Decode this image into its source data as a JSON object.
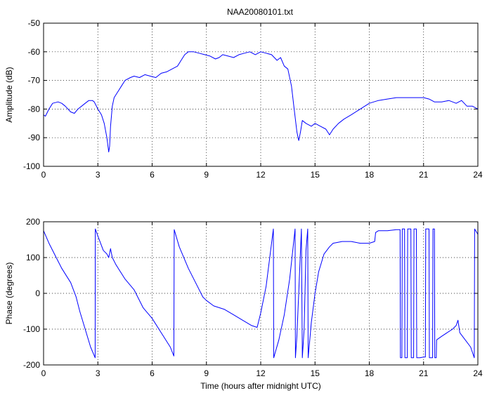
{
  "colors": {
    "series": "#0000ff",
    "axes": "#000000",
    "background": "#ffffff"
  },
  "chart_data": [
    {
      "type": "line",
      "title": "NAA20080101.txt",
      "xlabel": "",
      "ylabel": "Amplitude (dB)",
      "xlim": [
        0,
        24
      ],
      "ylim": [
        -100,
        -50
      ],
      "xticks": [
        0,
        3,
        6,
        9,
        12,
        15,
        18,
        21,
        24
      ],
      "yticks": [
        -100,
        -90,
        -80,
        -70,
        -60,
        -50
      ],
      "grid": true,
      "series": [
        {
          "name": "",
          "x": [
            0,
            0.1,
            0.3,
            0.5,
            0.8,
            1.0,
            1.2,
            1.5,
            1.7,
            1.9,
            2.1,
            2.3,
            2.5,
            2.7,
            2.8,
            3.0,
            3.2,
            3.35,
            3.5,
            3.6,
            3.65,
            3.7,
            3.8,
            3.9,
            4.1,
            4.3,
            4.5,
            4.8,
            5.0,
            5.3,
            5.6,
            5.9,
            6.2,
            6.5,
            6.8,
            7.1,
            7.4,
            7.6,
            7.8,
            8.0,
            8.3,
            8.6,
            8.9,
            9.2,
            9.5,
            9.7,
            9.9,
            10.2,
            10.5,
            10.8,
            11.1,
            11.4,
            11.7,
            12.0,
            12.3,
            12.6,
            12.9,
            13.1,
            13.3,
            13.5,
            13.7,
            13.85,
            14.0,
            14.1,
            14.2,
            14.3,
            14.5,
            14.8,
            15.0,
            15.3,
            15.6,
            15.8,
            16.0,
            16.3,
            16.6,
            17.0,
            17.5,
            18.0,
            18.5,
            19.0,
            19.5,
            20.0,
            20.5,
            21.0,
            21.3,
            21.6,
            22.0,
            22.4,
            22.8,
            23.1,
            23.4,
            23.7,
            24.0
          ],
          "y": [
            -82,
            -82.5,
            -80,
            -78,
            -77.5,
            -78,
            -79,
            -81,
            -81.5,
            -80,
            -79,
            -78,
            -77,
            -77,
            -77.5,
            -80,
            -82,
            -85,
            -90,
            -95,
            -93,
            -86,
            -79,
            -76,
            -74,
            -72,
            -70,
            -69,
            -68.5,
            -69,
            -68,
            -68.5,
            -69,
            -67.5,
            -67,
            -66,
            -65,
            -63,
            -61,
            -60,
            -60,
            -60.5,
            -61,
            -61.5,
            -62.5,
            -62,
            -61,
            -61.5,
            -62,
            -61,
            -60.5,
            -60,
            -61,
            -60,
            -60.5,
            -61,
            -63,
            -62,
            -65,
            -66,
            -72,
            -80,
            -88,
            -91,
            -88,
            -84,
            -85,
            -86,
            -85,
            -86,
            -87,
            -89,
            -87,
            -85,
            -83.5,
            -82,
            -80,
            -78,
            -77,
            -76.5,
            -76,
            -76,
            -76,
            -76,
            -76.5,
            -77.5,
            -77.5,
            -77,
            -78,
            -77,
            -79,
            -79,
            -80
          ]
        }
      ]
    },
    {
      "type": "line",
      "title": "",
      "xlabel": "Time (hours after midnight UTC)",
      "ylabel": "Phase (degrees)",
      "xlim": [
        0,
        24
      ],
      "ylim": [
        -200,
        200
      ],
      "xticks": [
        0,
        3,
        6,
        9,
        12,
        15,
        18,
        21,
        24
      ],
      "yticks": [
        -200,
        -100,
        0,
        100,
        200
      ],
      "grid": true,
      "series": [
        {
          "name": "",
          "x": [
            0,
            0.3,
            0.7,
            1.0,
            1.5,
            1.8,
            2.0,
            2.3,
            2.6,
            2.85,
            2.86,
            3.0,
            3.3,
            3.5,
            3.6,
            3.7,
            3.8,
            4.0,
            4.5,
            5.0,
            5.5,
            6.0,
            6.5,
            7.0,
            7.2,
            7.22,
            7.5,
            8.0,
            8.5,
            8.8,
            9.0,
            9.4,
            9.7,
            10.0,
            10.5,
            11.0,
            11.5,
            11.8,
            12.0,
            12.3,
            12.7,
            12.72,
            13.0,
            13.3,
            13.6,
            13.9,
            13.92,
            14.0,
            14.2,
            14.25,
            14.3,
            14.4,
            14.5,
            14.6,
            14.62,
            14.8,
            15.0,
            15.2,
            15.5,
            15.8,
            16.0,
            16.5,
            17.0,
            17.5,
            18.0,
            18.3,
            18.35,
            18.5,
            19.0,
            19.5,
            19.7,
            19.72,
            19.8,
            19.82,
            19.95,
            19.97,
            20.1,
            20.12,
            20.3,
            20.32,
            20.45,
            20.47,
            20.6,
            20.62,
            20.8,
            21.0,
            21.1,
            21.12,
            21.3,
            21.32,
            21.5,
            21.52,
            21.6,
            21.62,
            21.7,
            21.72,
            22.0,
            22.3,
            22.6,
            22.8,
            22.9,
            23.0,
            23.3,
            23.6,
            23.8,
            23.82,
            24.0
          ],
          "y": [
            175,
            140,
            100,
            70,
            30,
            -10,
            -50,
            -100,
            -150,
            -180,
            180,
            160,
            120,
            110,
            100,
            125,
            100,
            80,
            40,
            10,
            -40,
            -70,
            -110,
            -150,
            -175,
            178,
            130,
            70,
            20,
            -10,
            -20,
            -35,
            -40,
            -45,
            -60,
            -75,
            -90,
            -95,
            -55,
            20,
            180,
            -180,
            -130,
            -60,
            40,
            180,
            -180,
            -120,
            120,
            180,
            -180,
            -100,
            120,
            180,
            -180,
            -80,
            0,
            60,
            110,
            130,
            140,
            145,
            145,
            140,
            140,
            145,
            170,
            175,
            175,
            178,
            178,
            -180,
            -180,
            180,
            180,
            -180,
            -180,
            180,
            180,
            -180,
            -180,
            180,
            180,
            -180,
            -180,
            -178,
            -178,
            180,
            180,
            -180,
            -180,
            180,
            180,
            -180,
            -180,
            -130,
            -120,
            -110,
            -100,
            -90,
            -75,
            -110,
            -130,
            -150,
            -180,
            180,
            165
          ]
        }
      ]
    }
  ]
}
